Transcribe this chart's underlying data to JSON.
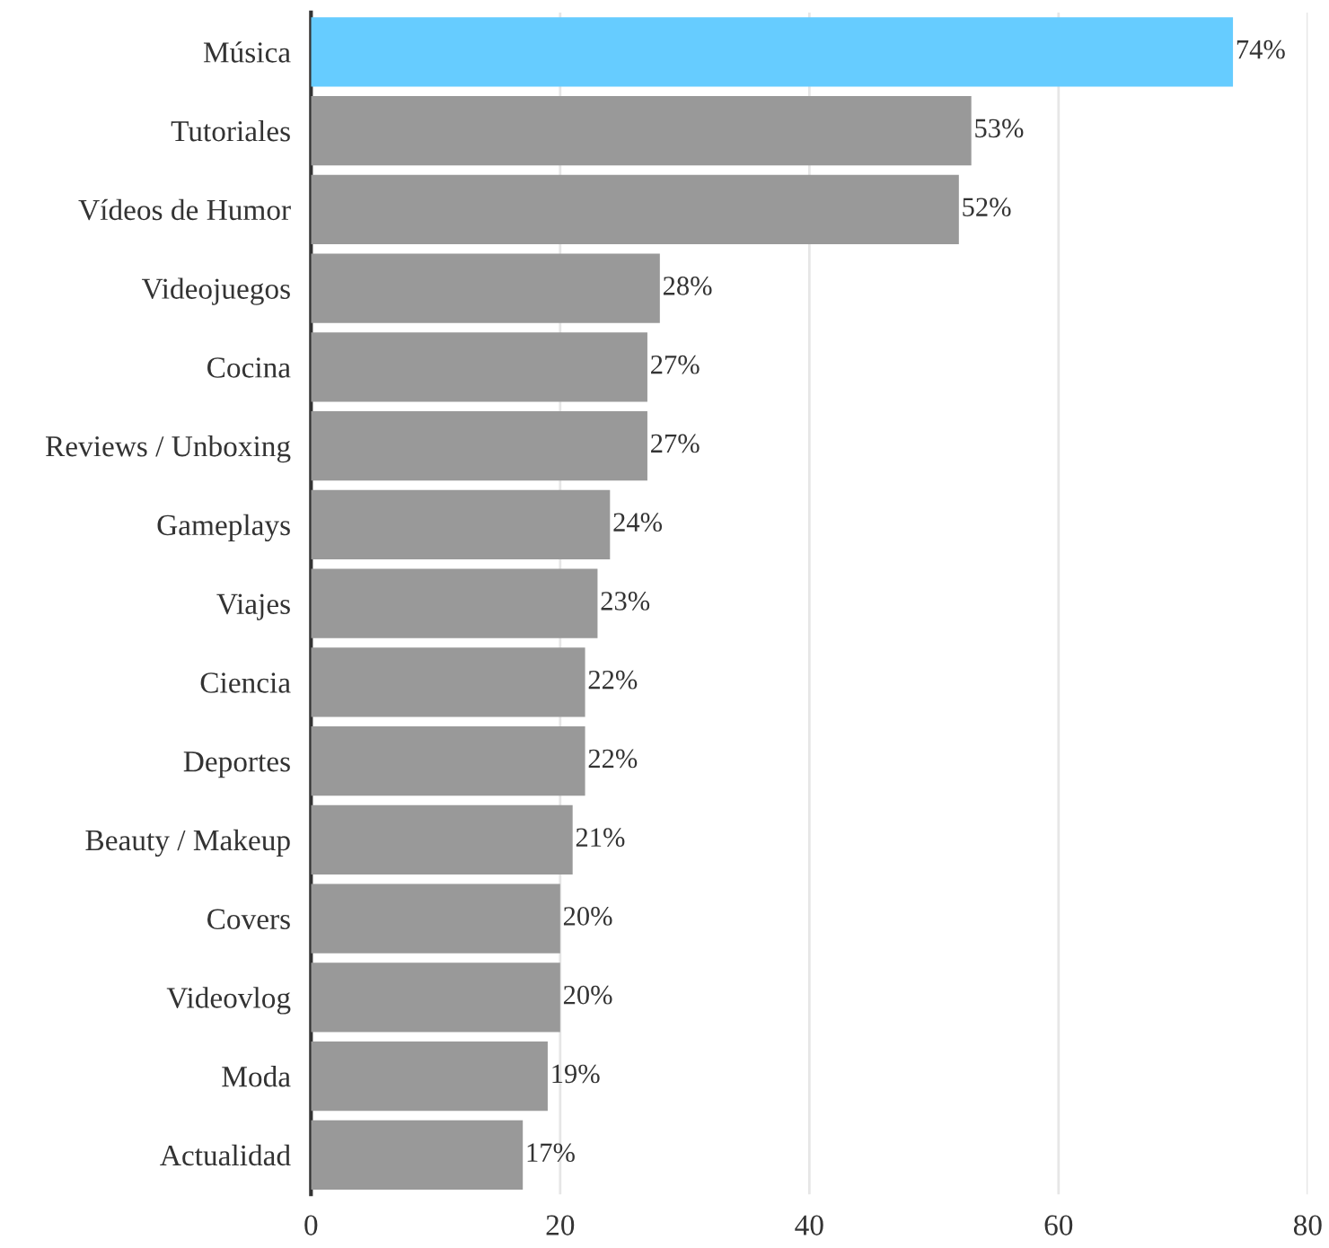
{
  "chart_data": {
    "type": "bar",
    "orientation": "horizontal",
    "categories": [
      "Música",
      "Tutoriales",
      "Vídeos de Humor",
      "Videojuegos",
      "Cocina",
      "Reviews / Unboxing",
      "Gameplays",
      "Viajes",
      "Ciencia",
      "Deportes",
      "Beauty / Makeup",
      "Covers",
      "Videovlog",
      "Moda",
      "Actualidad"
    ],
    "values": [
      74,
      53,
      52,
      28,
      27,
      27,
      24,
      23,
      22,
      22,
      21,
      20,
      20,
      19,
      17
    ],
    "colors": [
      "#66ccff",
      "#999999",
      "#999999",
      "#999999",
      "#999999",
      "#999999",
      "#999999",
      "#999999",
      "#999999",
      "#999999",
      "#999999",
      "#999999",
      "#999999",
      "#999999",
      "#999999"
    ],
    "value_labels": [
      "74%",
      "53%",
      "52%",
      "28%",
      "27%",
      "27%",
      "24%",
      "23%",
      "22%",
      "22%",
      "21%",
      "20%",
      "20%",
      "19%",
      "17%"
    ],
    "xlim": [
      0,
      80
    ],
    "xticks": [
      0,
      20,
      40,
      60,
      80
    ],
    "grid": "x",
    "legend": false
  }
}
